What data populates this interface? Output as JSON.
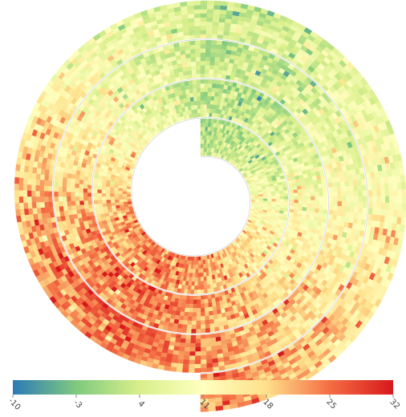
{
  "chart_data": {
    "type": "heatmap",
    "layout": "spiral",
    "title": "",
    "xlabel": "",
    "ylabel": "",
    "rings": 3.5,
    "start_direction": "up",
    "rotation": "clockwise",
    "value_range": [
      -10,
      32
    ],
    "colorbar": {
      "placement": "bottom",
      "ticks": [
        -10,
        -3,
        4,
        11,
        18,
        25,
        32
      ],
      "tick_labels": [
        "-10",
        "-3",
        "4",
        "11",
        "18",
        "25",
        "32"
      ],
      "colors": [
        "#2c7bb6",
        "#7fc97f",
        "#d9ef8b",
        "#ffffbf",
        "#fee08b",
        "#f46d43",
        "#d7191c"
      ]
    },
    "cycle_profile": {
      "description_points_fraction_of_turn": [
        0.0,
        0.08,
        0.17,
        0.25,
        0.33,
        0.42,
        0.5,
        0.58,
        0.67,
        0.75,
        0.83,
        0.92,
        1.0
      ],
      "typical_values": [
        1,
        2,
        5,
        9,
        13,
        17,
        21,
        23,
        21,
        17,
        12,
        6,
        2
      ]
    }
  }
}
